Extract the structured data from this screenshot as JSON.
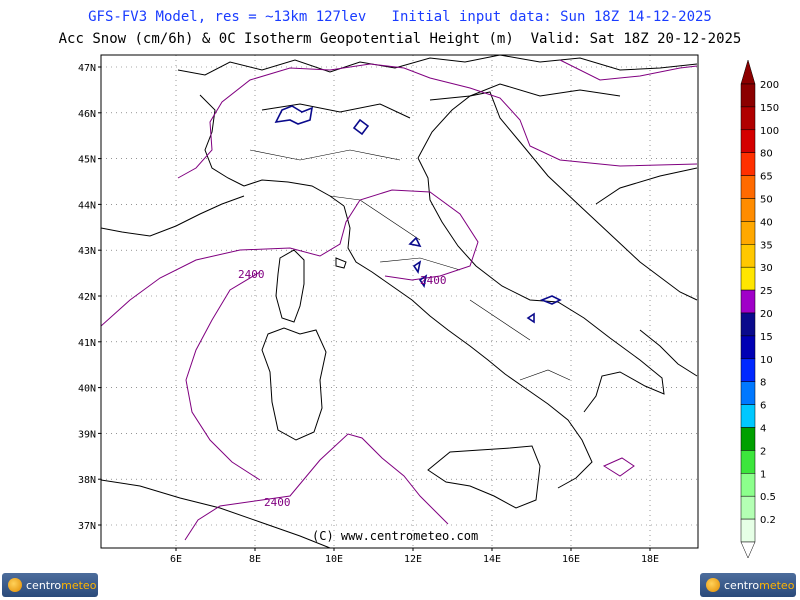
{
  "header": {
    "line1": "GFS-FV3 Model, res = ~13km 127lev   Initial input data: Sun 18Z 14-12-2025",
    "line2": "Acc Snow (cm/6h) & 0C Isotherm Geopotential Height (m)  Valid: Sat 18Z 20-12-2025"
  },
  "map": {
    "lat_labels": [
      "47N",
      "46N",
      "45N",
      "44N",
      "43N",
      "42N",
      "41N",
      "40N",
      "39N",
      "38N",
      "37N"
    ],
    "lon_labels": [
      "6E",
      "8E",
      "10E",
      "12E",
      "14E",
      "16E",
      "18E"
    ],
    "contour_labels": [
      "2400",
      "2400",
      "2400"
    ],
    "copyright": "(C) www.centrometeo.com"
  },
  "colorbar": {
    "levels": [
      {
        "label": "200",
        "color": "#8b0000"
      },
      {
        "label": "150",
        "color": "#b00000"
      },
      {
        "label": "100",
        "color": "#d40000"
      },
      {
        "label": "80",
        "color": "#ff3000"
      },
      {
        "label": "65",
        "color": "#ff6a00"
      },
      {
        "label": "50",
        "color": "#ff8c00"
      },
      {
        "label": "40",
        "color": "#ffa800"
      },
      {
        "label": "35",
        "color": "#ffc800"
      },
      {
        "label": "30",
        "color": "#ffe600"
      },
      {
        "label": "25",
        "color": "#a000c8"
      },
      {
        "label": "20",
        "color": "#0a0a8c"
      },
      {
        "label": "15",
        "color": "#0000b4"
      },
      {
        "label": "10",
        "color": "#0028ff"
      },
      {
        "label": "8",
        "color": "#0078ff"
      },
      {
        "label": "6",
        "color": "#00c8ff"
      },
      {
        "label": "4",
        "color": "#00a000"
      },
      {
        "label": "2",
        "color": "#3ce63c"
      },
      {
        "label": "1",
        "color": "#8cff8c"
      },
      {
        "label": "0.5",
        "color": "#b4ffb4"
      },
      {
        "label": "0.2",
        "color": "#e6ffe6"
      }
    ]
  },
  "logo": {
    "text_a": "centro",
    "text_b": "meteo"
  },
  "colors": {
    "coast": "#000000",
    "isotherm": "#800080",
    "snow": "#0a0a8c",
    "header_blue": "#1a3cff"
  }
}
